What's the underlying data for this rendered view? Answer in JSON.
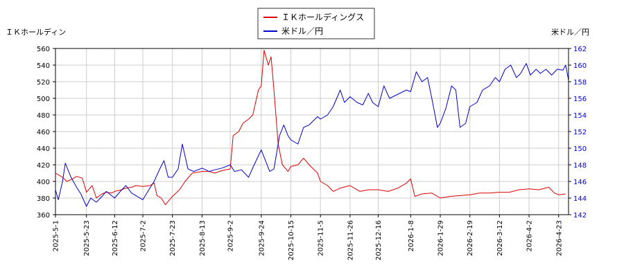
{
  "chart_data": {
    "type": "line",
    "title": "",
    "left_axis_label": "ＩＫホールディン",
    "right_axis_label": "米ドル／円",
    "xlabel": "",
    "grid": true,
    "legend_placement": "top-center",
    "x_ticks": [
      "2025-5-1",
      "2025-5-23",
      "2025-6-12",
      "2025-7-2",
      "2025-7-23",
      "2025-8-13",
      "2025-9-2",
      "2025-9-24",
      "2025-10-15",
      "2025-11-5",
      "2025-11-26",
      "2025-12-16",
      "2026-1-8",
      "2026-1-29",
      "2026-2-19",
      "2026-3-12",
      "2026-4-2",
      "2026-4-23"
    ],
    "x_range": [
      "2025-5-1",
      "2026-4-30"
    ],
    "y_left_range": [
      360,
      560
    ],
    "y_left_ticks": [
      360,
      380,
      400,
      420,
      440,
      460,
      480,
      500,
      520,
      540,
      560
    ],
    "y_right_range": [
      142,
      162
    ],
    "y_right_ticks": [
      142,
      144,
      146,
      148,
      150,
      152,
      154,
      156,
      158,
      160,
      162
    ],
    "series": [
      {
        "name": "ＩＫホールディングス",
        "color": "#dd0000",
        "axis": "left",
        "points": [
          [
            "2025-5-1",
            410
          ],
          [
            "2025-5-6",
            405
          ],
          [
            "2025-5-9",
            400
          ],
          [
            "2025-5-13",
            403
          ],
          [
            "2025-5-16",
            406
          ],
          [
            "2025-5-20",
            404
          ],
          [
            "2025-5-23",
            387
          ],
          [
            "2025-5-27",
            395
          ],
          [
            "2025-5-30",
            380
          ],
          [
            "2025-6-3",
            385
          ],
          [
            "2025-6-6",
            387
          ],
          [
            "2025-6-10",
            386
          ],
          [
            "2025-6-12",
            388
          ],
          [
            "2025-6-17",
            390
          ],
          [
            "2025-6-20",
            392
          ],
          [
            "2025-6-24",
            393
          ],
          [
            "2025-6-27",
            395
          ],
          [
            "2025-7-2",
            394
          ],
          [
            "2025-7-7",
            395
          ],
          [
            "2025-7-10",
            398
          ],
          [
            "2025-7-12",
            383
          ],
          [
            "2025-7-15",
            380
          ],
          [
            "2025-7-18",
            372
          ],
          [
            "2025-7-23",
            382
          ],
          [
            "2025-7-28",
            390
          ],
          [
            "2025-8-1",
            400
          ],
          [
            "2025-8-6",
            410
          ],
          [
            "2025-8-13",
            412
          ],
          [
            "2025-8-18",
            412
          ],
          [
            "2025-8-22",
            410
          ],
          [
            "2025-8-27",
            413
          ],
          [
            "2025-9-2",
            415
          ],
          [
            "2025-9-4",
            455
          ],
          [
            "2025-9-8",
            460
          ],
          [
            "2025-9-11",
            470
          ],
          [
            "2025-9-15",
            475
          ],
          [
            "2025-9-18",
            480
          ],
          [
            "2025-9-22",
            510
          ],
          [
            "2025-9-24",
            515
          ],
          [
            "2025-9-26",
            558
          ],
          [
            "2025-9-29",
            540
          ],
          [
            "2025-10-1",
            550
          ],
          [
            "2025-10-3",
            510
          ],
          [
            "2025-10-6",
            445
          ],
          [
            "2025-10-9",
            420
          ],
          [
            "2025-10-13",
            412
          ],
          [
            "2025-10-15",
            418
          ],
          [
            "2025-10-20",
            420
          ],
          [
            "2025-10-24",
            428
          ],
          [
            "2025-10-28",
            420
          ],
          [
            "2025-11-3",
            410
          ],
          [
            "2025-11-5",
            400
          ],
          [
            "2025-11-10",
            395
          ],
          [
            "2025-11-14",
            388
          ],
          [
            "2025-11-19",
            392
          ],
          [
            "2025-11-26",
            395
          ],
          [
            "2025-12-3",
            388
          ],
          [
            "2025-12-9",
            390
          ],
          [
            "2025-12-16",
            390
          ],
          [
            "2025-12-23",
            388
          ],
          [
            "2025-12-30",
            392
          ],
          [
            "2026-1-5",
            398
          ],
          [
            "2026-1-8",
            403
          ],
          [
            "2026-1-11",
            382
          ],
          [
            "2026-1-16",
            385
          ],
          [
            "2026-1-23",
            386
          ],
          [
            "2026-1-29",
            380
          ],
          [
            "2026-2-5",
            382
          ],
          [
            "2026-2-12",
            383
          ],
          [
            "2026-2-19",
            384
          ],
          [
            "2026-2-26",
            386
          ],
          [
            "2026-3-5",
            386
          ],
          [
            "2026-3-12",
            387
          ],
          [
            "2026-3-19",
            387
          ],
          [
            "2026-3-26",
            390
          ],
          [
            "2026-4-2",
            391
          ],
          [
            "2026-4-9",
            390
          ],
          [
            "2026-4-16",
            393
          ],
          [
            "2026-4-20",
            386
          ],
          [
            "2026-4-23",
            384
          ],
          [
            "2026-4-28",
            385
          ]
        ]
      },
      {
        "name": "米ドル／円",
        "color": "#0000cc",
        "axis": "right",
        "points": [
          [
            "2025-5-1",
            145.0
          ],
          [
            "2025-5-3",
            143.8
          ],
          [
            "2025-5-6",
            146.0
          ],
          [
            "2025-5-8",
            148.2
          ],
          [
            "2025-5-12",
            146.5
          ],
          [
            "2025-5-16",
            145.3
          ],
          [
            "2025-5-19",
            144.5
          ],
          [
            "2025-5-23",
            143.0
          ],
          [
            "2025-5-26",
            144.0
          ],
          [
            "2025-5-30",
            143.5
          ],
          [
            "2025-6-3",
            144.2
          ],
          [
            "2025-6-6",
            144.8
          ],
          [
            "2025-6-12",
            144.0
          ],
          [
            "2025-6-17",
            145.0
          ],
          [
            "2025-6-20",
            145.5
          ],
          [
            "2025-6-24",
            144.6
          ],
          [
            "2025-6-27",
            144.3
          ],
          [
            "2025-7-2",
            143.8
          ],
          [
            "2025-7-7",
            145.2
          ],
          [
            "2025-7-10",
            146.0
          ],
          [
            "2025-7-14",
            147.5
          ],
          [
            "2025-7-17",
            148.5
          ],
          [
            "2025-7-20",
            146.5
          ],
          [
            "2025-7-23",
            146.5
          ],
          [
            "2025-7-27",
            147.5
          ],
          [
            "2025-7-30",
            150.5
          ],
          [
            "2025-8-3",
            147.5
          ],
          [
            "2025-8-7",
            147.2
          ],
          [
            "2025-8-13",
            147.6
          ],
          [
            "2025-8-18",
            147.2
          ],
          [
            "2025-8-22",
            147.4
          ],
          [
            "2025-8-27",
            147.6
          ],
          [
            "2025-9-2",
            148.0
          ],
          [
            "2025-9-5",
            147.2
          ],
          [
            "2025-9-10",
            147.4
          ],
          [
            "2025-9-15",
            146.5
          ],
          [
            "2025-9-19",
            148.0
          ],
          [
            "2025-9-24",
            149.8
          ],
          [
            "2025-9-27",
            148.5
          ],
          [
            "2025-9-30",
            147.2
          ],
          [
            "2025-10-3",
            147.5
          ],
          [
            "2025-10-7",
            151.5
          ],
          [
            "2025-10-10",
            152.8
          ],
          [
            "2025-10-13",
            151.5
          ],
          [
            "2025-10-15",
            151.0
          ],
          [
            "2025-10-20",
            150.5
          ],
          [
            "2025-10-24",
            152.5
          ],
          [
            "2025-10-28",
            152.8
          ],
          [
            "2025-11-3",
            153.8
          ],
          [
            "2025-11-5",
            153.5
          ],
          [
            "2025-11-10",
            154.0
          ],
          [
            "2025-11-14",
            155.0
          ],
          [
            "2025-11-19",
            157.0
          ],
          [
            "2025-11-22",
            155.5
          ],
          [
            "2025-11-26",
            156.2
          ],
          [
            "2025-12-1",
            155.5
          ],
          [
            "2025-12-5",
            155.2
          ],
          [
            "2025-12-9",
            156.6
          ],
          [
            "2025-12-12",
            155.5
          ],
          [
            "2025-12-16",
            155.0
          ],
          [
            "2025-12-20",
            157.5
          ],
          [
            "2025-12-24",
            156.0
          ],
          [
            "2025-12-30",
            156.5
          ],
          [
            "2026-1-5",
            157.0
          ],
          [
            "2026-1-8",
            156.8
          ],
          [
            "2026-1-12",
            159.2
          ],
          [
            "2026-1-16",
            158.0
          ],
          [
            "2026-1-20",
            158.5
          ],
          [
            "2026-1-23",
            156.0
          ],
          [
            "2026-1-27",
            152.5
          ],
          [
            "2026-1-29",
            153.0
          ],
          [
            "2026-2-2",
            154.8
          ],
          [
            "2026-2-6",
            157.5
          ],
          [
            "2026-2-9",
            157.0
          ],
          [
            "2026-2-12",
            152.5
          ],
          [
            "2026-2-16",
            153.0
          ],
          [
            "2026-2-19",
            155.0
          ],
          [
            "2026-2-24",
            155.5
          ],
          [
            "2026-2-28",
            157.0
          ],
          [
            "2026-3-5",
            157.5
          ],
          [
            "2026-3-9",
            158.5
          ],
          [
            "2026-3-12",
            158.0
          ],
          [
            "2026-3-16",
            159.5
          ],
          [
            "2026-3-20",
            160.0
          ],
          [
            "2026-3-24",
            158.5
          ],
          [
            "2026-3-27",
            159.0
          ],
          [
            "2026-3-31",
            160.2
          ],
          [
            "2026-4-3",
            158.8
          ],
          [
            "2026-4-7",
            159.5
          ],
          [
            "2026-4-10",
            159.0
          ],
          [
            "2026-4-14",
            159.5
          ],
          [
            "2026-4-18",
            158.8
          ],
          [
            "2026-4-22",
            159.5
          ],
          [
            "2026-4-26",
            159.4
          ],
          [
            "2026-4-28",
            160.0
          ],
          [
            "2026-4-30",
            158.2
          ]
        ]
      }
    ]
  }
}
